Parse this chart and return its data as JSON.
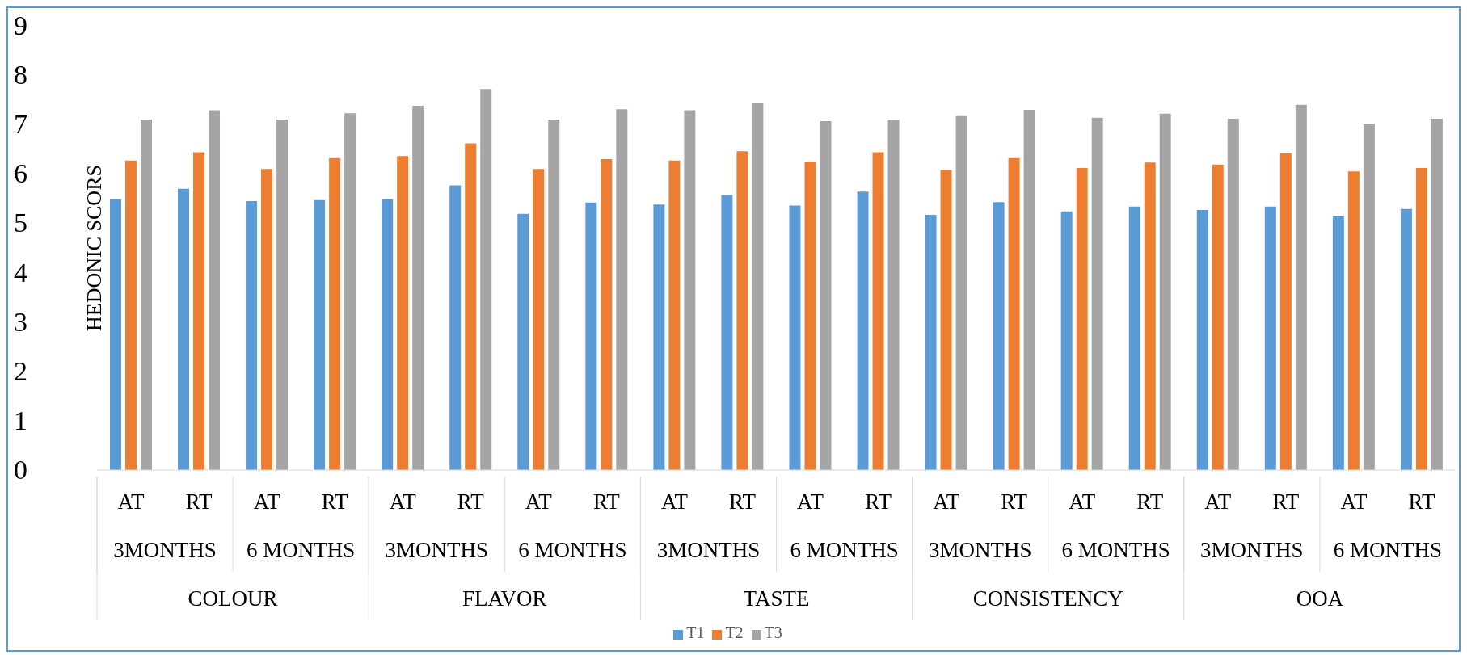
{
  "chart_data": {
    "type": "bar",
    "ylabel": "HEDONIC SCORS",
    "categories": [
      "AT",
      "RT",
      "AT",
      "RT",
      "AT",
      "RT",
      "AT",
      "RT",
      "AT",
      "RT",
      "AT",
      "RT",
      "AT",
      "RT",
      "AT",
      "RT",
      "AT",
      "RT",
      "AT",
      "RT"
    ],
    "annotations": [
      "3MONTHS",
      "6 MONTHS",
      "3MONTHS",
      "6 MONTHS",
      "3MONTHS",
      "6 MONTHS",
      "3MONTHS",
      "6 MONTHS",
      "3MONTHS",
      "6 MONTHS",
      "COLOUR",
      "FLAVOR",
      "TASTE",
      "CONSISTENCY",
      "OOA"
    ],
    "series": [
      {
        "name": "T1",
        "color": "#5b9bd5",
        "values": [
          5.49,
          5.7,
          5.45,
          5.47,
          5.49,
          5.77,
          5.19,
          5.42,
          5.38,
          5.57,
          5.36,
          5.64,
          5.17,
          5.43,
          5.24,
          5.34,
          5.27,
          5.34,
          5.15,
          5.29
        ]
      },
      {
        "name": "T2",
        "color": "#ed7d31",
        "values": [
          6.27,
          6.44,
          6.1,
          6.32,
          6.36,
          6.62,
          6.1,
          6.3,
          6.27,
          6.46,
          6.25,
          6.44,
          6.08,
          6.32,
          6.12,
          6.23,
          6.19,
          6.42,
          6.05,
          6.12
        ]
      },
      {
        "name": "T3",
        "color": "#a5a5a5",
        "values": [
          7.1,
          7.29,
          7.1,
          7.23,
          7.38,
          7.72,
          7.1,
          7.31,
          7.29,
          7.43,
          7.07,
          7.1,
          7.17,
          7.3,
          7.14,
          7.22,
          7.12,
          7.4,
          7.02,
          7.12
        ]
      }
    ],
    "ylim": [
      0,
      9
    ],
    "yticks": [
      0,
      1,
      2,
      3,
      4,
      5,
      6,
      7,
      8,
      9
    ],
    "grid": false,
    "legend": "bottom"
  }
}
